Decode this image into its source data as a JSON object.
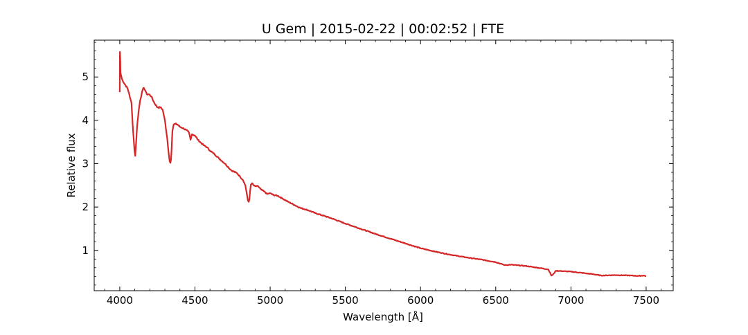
{
  "chart_data": {
    "type": "line",
    "title": "U Gem | 2015-02-22 | 00:02:52 | FTE",
    "xlabel": "Wavelength [Å]",
    "ylabel": "Relative flux",
    "xlim": [
      3830,
      7680
    ],
    "ylim": [
      0.07,
      5.85
    ],
    "xticks": [
      4000,
      4500,
      5000,
      5500,
      6000,
      6500,
      7000,
      7500
    ],
    "yticks": [
      1,
      2,
      3,
      4,
      5
    ],
    "grid": false,
    "legend": "none",
    "line_color": "#d62728",
    "series": [
      {
        "x": [
          4000,
          4001,
          4003,
          4005,
          4008,
          4015,
          4030,
          4050,
          4062,
          4070,
          4078,
          4085,
          4092,
          4098,
          4103,
          4108,
          4115,
          4125,
          4135,
          4145,
          4152,
          4160,
          4168,
          4180,
          4195,
          4210,
          4230,
          4250,
          4270,
          4285,
          4300,
          4315,
          4325,
          4332,
          4337,
          4341,
          4345,
          4350,
          4358,
          4370,
          4385,
          4400,
          4420,
          4440,
          4460,
          4471,
          4480,
          4500,
          4520,
          4540,
          4560,
          4580,
          4600,
          4630,
          4660,
          4700,
          4740,
          4780,
          4800,
          4820,
          4835,
          4845,
          4852,
          4858,
          4862,
          4866,
          4872,
          4880,
          4890,
          4900,
          4920,
          4940,
          4960,
          4980,
          5000,
          5020,
          5050,
          5080,
          5120,
          5160,
          5200,
          5250,
          5300,
          5400,
          5500,
          5600,
          5700,
          5800,
          5900,
          6000,
          6100,
          6200,
          6300,
          6400,
          6500,
          6560,
          6600,
          6700,
          6800,
          6850,
          6870,
          6880,
          6900,
          7000,
          7100,
          7150,
          7200,
          7300,
          7400,
          7450,
          7480,
          7500
        ],
        "y": [
          4.65,
          5.58,
          5.45,
          5.1,
          5.05,
          4.95,
          4.85,
          4.75,
          4.62,
          4.5,
          4.4,
          3.95,
          3.6,
          3.3,
          3.18,
          3.45,
          3.85,
          4.2,
          4.45,
          4.6,
          4.7,
          4.75,
          4.7,
          4.6,
          4.6,
          4.55,
          4.4,
          4.3,
          4.3,
          4.25,
          4.0,
          3.6,
          3.25,
          3.05,
          3.02,
          3.1,
          3.35,
          3.75,
          3.9,
          3.92,
          3.9,
          3.85,
          3.82,
          3.78,
          3.72,
          3.55,
          3.68,
          3.65,
          3.55,
          3.48,
          3.42,
          3.38,
          3.3,
          3.22,
          3.12,
          3.0,
          2.85,
          2.78,
          2.7,
          2.62,
          2.5,
          2.3,
          2.15,
          2.12,
          2.18,
          2.35,
          2.52,
          2.55,
          2.5,
          2.48,
          2.48,
          2.4,
          2.36,
          2.3,
          2.32,
          2.28,
          2.26,
          2.2,
          2.12,
          2.05,
          1.98,
          1.93,
          1.86,
          1.75,
          1.62,
          1.5,
          1.38,
          1.27,
          1.16,
          1.05,
          0.97,
          0.9,
          0.84,
          0.79,
          0.73,
          0.66,
          0.67,
          0.64,
          0.59,
          0.56,
          0.42,
          0.44,
          0.53,
          0.51,
          0.47,
          0.45,
          0.42,
          0.43,
          0.42,
          0.41,
          0.42,
          0.41
        ]
      }
    ]
  }
}
